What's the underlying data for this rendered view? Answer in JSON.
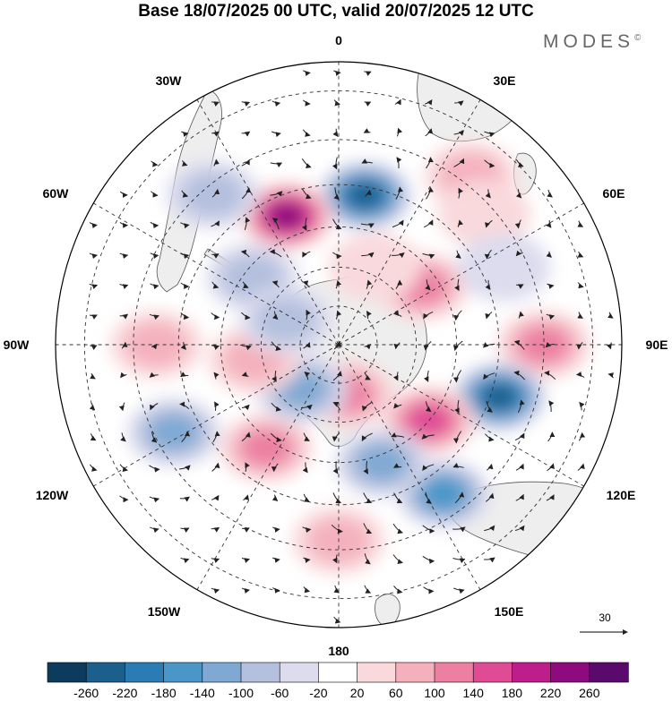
{
  "header": {
    "title": "Base 18/07/2025 00 UTC, valid 20/07/2025 12 UTC",
    "brand": "MODES",
    "brand_mark": "©"
  },
  "map": {
    "projection": "south-polar-stereographic",
    "longitude_labels": {
      "n0": "0",
      "n30e": "30E",
      "n60e": "60E",
      "n90e": "90E",
      "n120e": "120E",
      "n150e": "150E",
      "n180": "180",
      "n150w": "150W",
      "n120w": "120W",
      "n90w": "90W",
      "n60w": "60W",
      "n30w": "30W"
    },
    "reference_vector": "30",
    "colors": {
      "land": "#eeeeee",
      "coast": "#555555",
      "grid": "#333333",
      "vector": "#222222"
    },
    "anomaly_features": [
      {
        "lon": 10,
        "lat": -52,
        "value": -240
      },
      {
        "lon": -22,
        "lat": -55,
        "value": 230
      },
      {
        "lon": 38,
        "lat": -38,
        "value": 90
      },
      {
        "lon": 48,
        "lat": -42,
        "value": 40
      },
      {
        "lon": -40,
        "lat": -42,
        "value": -70
      },
      {
        "lon": -52,
        "lat": -62,
        "value": -60
      },
      {
        "lon": 55,
        "lat": -64,
        "value": 120
      },
      {
        "lon": 65,
        "lat": -45,
        "value": -50
      },
      {
        "lon": 90,
        "lat": -40,
        "value": 100
      },
      {
        "lon": 108,
        "lat": -48,
        "value": -240
      },
      {
        "lon": 130,
        "lat": -60,
        "value": 140
      },
      {
        "lon": 145,
        "lat": -45,
        "value": -170
      },
      {
        "lon": 160,
        "lat": -58,
        "value": -130
      },
      {
        "lon": 170,
        "lat": -77,
        "value": 120
      },
      {
        "lon": 180,
        "lat": -42,
        "value": 70
      },
      {
        "lon": -145,
        "lat": -58,
        "value": 100
      },
      {
        "lon": -140,
        "lat": -75,
        "value": -110
      },
      {
        "lon": -118,
        "lat": -44,
        "value": -130
      },
      {
        "lon": -100,
        "lat": -68,
        "value": 80
      },
      {
        "lon": -90,
        "lat": -45,
        "value": 60
      },
      {
        "lon": -65,
        "lat": -75,
        "value": -80
      },
      {
        "lon": 25,
        "lat": -68,
        "value": 50
      }
    ]
  },
  "colorbar": {
    "labels": [
      "-260",
      "-220",
      "-180",
      "-140",
      "-100",
      "-60",
      "-20",
      "20",
      "60",
      "100",
      "140",
      "180",
      "220",
      "260"
    ],
    "colors": [
      "#0d3b5e",
      "#1b5f8c",
      "#2b7bb4",
      "#4a96c8",
      "#7fa9d3",
      "#b4c0de",
      "#dcdcee",
      "#ffffff",
      "#f9d9dc",
      "#f4b1bd",
      "#ec7fa2",
      "#e04b96",
      "#bd1e8c",
      "#8e0a7e",
      "#5a0a6d"
    ]
  }
}
